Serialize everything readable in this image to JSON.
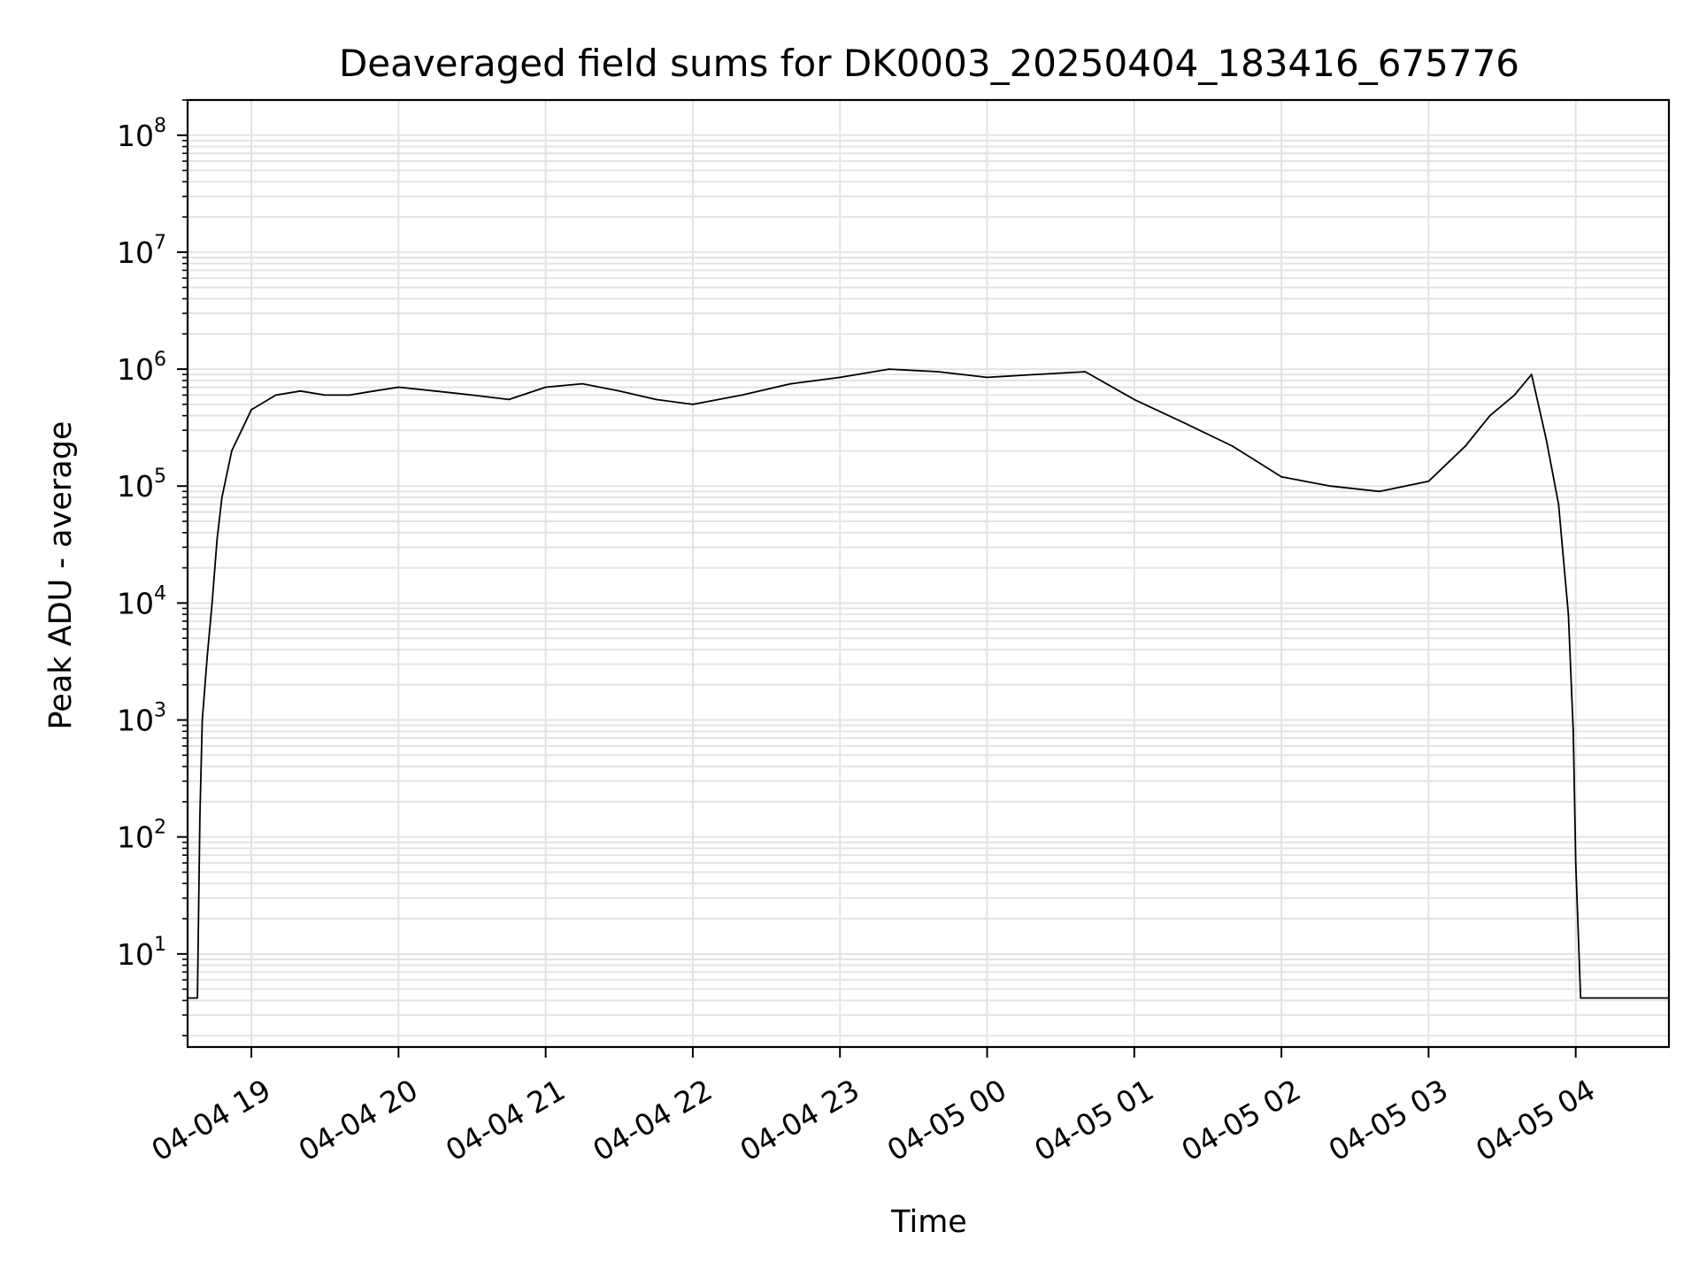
{
  "chart_data": {
    "type": "line",
    "title": "Deaveraged field sums for DK0003_20250404_183416_675776",
    "xlabel": "Time",
    "ylabel": "Peak ADU - average",
    "yscale": "log",
    "ylim": [
      1.6,
      200000000
    ],
    "xlim": [
      "2025-04-04 18:34",
      "2025-04-05 04:38"
    ],
    "grid": true,
    "line_color": "#000000",
    "x_ticks": [
      {
        "value": "2025-04-04 19:00",
        "label": "04-04 19"
      },
      {
        "value": "2025-04-04 20:00",
        "label": "04-04 20"
      },
      {
        "value": "2025-04-04 21:00",
        "label": "04-04 21"
      },
      {
        "value": "2025-04-04 22:00",
        "label": "04-04 22"
      },
      {
        "value": "2025-04-04 23:00",
        "label": "04-04 23"
      },
      {
        "value": "2025-04-05 00:00",
        "label": "04-05 00"
      },
      {
        "value": "2025-04-05 01:00",
        "label": "04-05 01"
      },
      {
        "value": "2025-04-05 02:00",
        "label": "04-05 02"
      },
      {
        "value": "2025-04-05 03:00",
        "label": "04-05 03"
      },
      {
        "value": "2025-04-05 04:00",
        "label": "04-05 04"
      }
    ],
    "y_ticks": [
      {
        "value": 10,
        "label": "10",
        "exp": "1"
      },
      {
        "value": 100,
        "label": "10",
        "exp": "2"
      },
      {
        "value": 1000,
        "label": "10",
        "exp": "3"
      },
      {
        "value": 10000,
        "label": "10",
        "exp": "4"
      },
      {
        "value": 100000,
        "label": "10",
        "exp": "5"
      },
      {
        "value": 1000000,
        "label": "10",
        "exp": "6"
      },
      {
        "value": 10000000,
        "label": "10",
        "exp": "7"
      },
      {
        "value": 100000000,
        "label": "10",
        "exp": "8"
      }
    ],
    "series": [
      {
        "x": [
          "2025-04-04 18:34",
          "2025-04-04 18:38",
          "2025-04-04 18:39",
          "2025-04-04 18:40",
          "2025-04-04 18:42",
          "2025-04-04 18:44",
          "2025-04-04 18:46",
          "2025-04-04 18:48",
          "2025-04-04 18:52",
          "2025-04-04 18:56",
          "2025-04-04 19:00",
          "2025-04-04 19:10",
          "2025-04-04 19:20",
          "2025-04-04 19:30",
          "2025-04-04 19:40",
          "2025-04-04 19:50",
          "2025-04-04 20:00",
          "2025-04-04 20:15",
          "2025-04-04 20:30",
          "2025-04-04 20:45",
          "2025-04-04 21:00",
          "2025-04-04 21:15",
          "2025-04-04 21:30",
          "2025-04-04 21:45",
          "2025-04-04 22:00",
          "2025-04-04 22:20",
          "2025-04-04 22:40",
          "2025-04-04 23:00",
          "2025-04-04 23:20",
          "2025-04-04 23:40",
          "2025-04-05 00:00",
          "2025-04-05 00:20",
          "2025-04-05 00:40",
          "2025-04-05 01:00",
          "2025-04-05 01:20",
          "2025-04-05 01:40",
          "2025-04-05 02:00",
          "2025-04-05 02:20",
          "2025-04-05 02:40",
          "2025-04-05 03:00",
          "2025-04-05 03:15",
          "2025-04-05 03:25",
          "2025-04-05 03:35",
          "2025-04-05 03:42",
          "2025-04-05 03:48",
          "2025-04-05 03:53",
          "2025-04-05 03:57",
          "2025-04-05 03:59",
          "2025-04-05 04:00",
          "2025-04-05 04:02",
          "2025-04-05 04:38"
        ],
        "y": [
          4.2,
          4.2,
          150,
          1000,
          3500,
          10000,
          35000,
          80000,
          200000,
          300000,
          450000,
          600000,
          650000,
          600000,
          600000,
          650000,
          700000,
          650000,
          600000,
          550000,
          700000,
          750000,
          650000,
          550000,
          500000,
          600000,
          750000,
          850000,
          1000000,
          950000,
          850000,
          900000,
          950000,
          550000,
          350000,
          220000,
          120000,
          100000,
          90000,
          110000,
          220000,
          400000,
          600000,
          900000,
          250000,
          70000,
          8000,
          800,
          60,
          4.2,
          4.2
        ]
      }
    ]
  }
}
